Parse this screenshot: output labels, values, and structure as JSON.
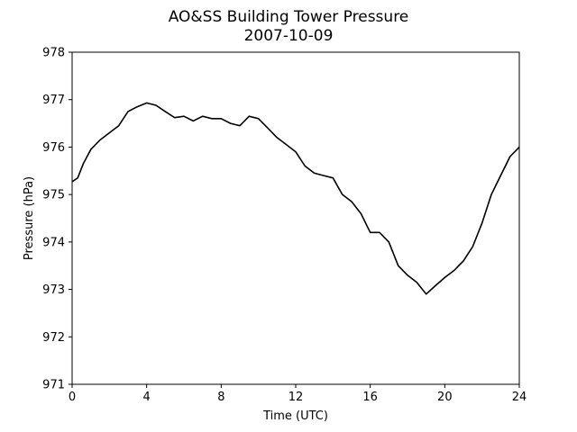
{
  "chart_data": {
    "type": "line",
    "title": "AO&SS Building Tower Pressure",
    "subtitle": "2007-10-09",
    "xlabel": "Time (UTC)",
    "ylabel": "Pressure (hPa)",
    "xlim": [
      0,
      24
    ],
    "ylim": [
      971,
      978
    ],
    "xticks": [
      0,
      4,
      8,
      12,
      16,
      20,
      24
    ],
    "yticks": [
      971,
      972,
      973,
      974,
      975,
      976,
      977,
      978
    ],
    "grid": false,
    "line_color": "#000000",
    "series": [
      {
        "x": [
          0,
          0.3,
          0.6,
          1.0,
          1.5,
          2.0,
          2.5,
          3.0,
          3.5,
          4.0,
          4.5,
          5.0,
          5.5,
          6.0,
          6.5,
          7.0,
          7.5,
          8.0,
          8.5,
          9.0,
          9.5,
          10.0,
          10.5,
          11.0,
          11.5,
          12.0,
          12.5,
          13.0,
          13.5,
          14.0,
          14.5,
          15.0,
          15.5,
          16.0,
          16.5,
          17.0,
          17.5,
          18.0,
          18.5,
          19.0,
          19.5,
          20.0,
          20.5,
          21.0,
          21.5,
          22.0,
          22.5,
          23.0,
          23.5,
          24.0
        ],
        "y": [
          975.27,
          975.35,
          975.65,
          975.95,
          976.15,
          976.3,
          976.45,
          976.75,
          976.85,
          976.93,
          976.88,
          976.75,
          976.62,
          976.65,
          976.55,
          976.65,
          976.6,
          976.6,
          976.5,
          976.45,
          976.65,
          976.6,
          976.4,
          976.2,
          976.05,
          975.9,
          975.6,
          975.45,
          975.4,
          975.35,
          975.0,
          974.85,
          974.6,
          974.2,
          974.2,
          974.0,
          973.5,
          973.3,
          973.15,
          972.9,
          973.08,
          973.25,
          973.4,
          973.6,
          973.9,
          974.4,
          975.0,
          975.4,
          975.8,
          976.0
        ]
      }
    ]
  }
}
